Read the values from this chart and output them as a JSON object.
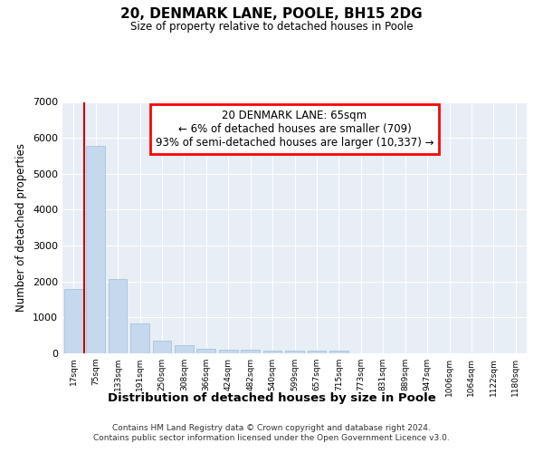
{
  "title": "20, DENMARK LANE, POOLE, BH15 2DG",
  "subtitle": "Size of property relative to detached houses in Poole",
  "xlabel": "Distribution of detached houses by size in Poole",
  "ylabel": "Number of detached properties",
  "footer_line1": "Contains HM Land Registry data © Crown copyright and database right 2024.",
  "footer_line2": "Contains public sector information licensed under the Open Government Licence v3.0.",
  "bar_color": "#c5d8ed",
  "bar_edge_color": "#9bbdd9",
  "vline_color": "#cc0000",
  "annotation_line1": "20 DENMARK LANE: 65sqm",
  "annotation_line2": "← 6% of detached houses are smaller (709)",
  "annotation_line3": "93% of semi-detached houses are larger (10,337) →",
  "categories": [
    "17sqm",
    "75sqm",
    "133sqm",
    "191sqm",
    "250sqm",
    "308sqm",
    "366sqm",
    "424sqm",
    "482sqm",
    "540sqm",
    "599sqm",
    "657sqm",
    "715sqm",
    "773sqm",
    "831sqm",
    "889sqm",
    "947sqm",
    "1006sqm",
    "1064sqm",
    "1122sqm",
    "1180sqm"
  ],
  "values": [
    1780,
    5780,
    2060,
    820,
    350,
    230,
    130,
    110,
    100,
    80,
    80,
    75,
    70,
    0,
    0,
    0,
    0,
    0,
    0,
    0,
    0
  ],
  "ylim": [
    0,
    7000
  ],
  "yticks": [
    0,
    1000,
    2000,
    3000,
    4000,
    5000,
    6000,
    7000
  ],
  "background_color": "#ffffff",
  "plot_bg_color": "#e8eef5",
  "grid_color": "#ffffff"
}
